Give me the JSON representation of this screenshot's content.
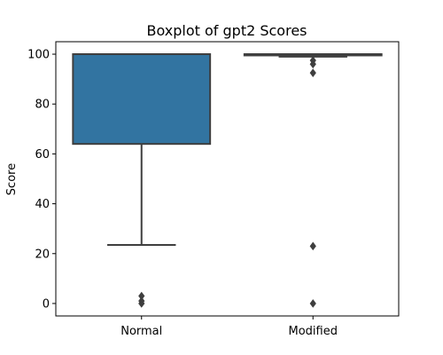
{
  "chart_data": {
    "type": "box",
    "title": "Boxplot of gpt2 Scores",
    "xlabel": "",
    "ylabel": "Score",
    "ylim": [
      -5,
      105
    ],
    "yticks": [
      0,
      20,
      40,
      60,
      80,
      100
    ],
    "ytick_labels": [
      "0",
      "20",
      "40",
      "60",
      "80",
      "100"
    ],
    "grid": false,
    "categories": [
      "Normal",
      "Modified"
    ],
    "boxes": [
      {
        "category": "Normal",
        "whisker_low": 23.5,
        "q1": 64,
        "median": 100,
        "q3": 100,
        "whisker_high": 100,
        "outliers": [
          3,
          1,
          0
        ]
      },
      {
        "category": "Modified",
        "whisker_low": 99,
        "q1": 99.5,
        "median": 100,
        "q3": 100,
        "whisker_high": 100,
        "outliers": [
          97.5,
          96,
          92.5,
          23,
          0
        ]
      }
    ],
    "colors": {
      "Normal": "#3274a1",
      "Modified": "#e1812c",
      "lines": "#3f3f3f",
      "axes": "#000000"
    }
  }
}
